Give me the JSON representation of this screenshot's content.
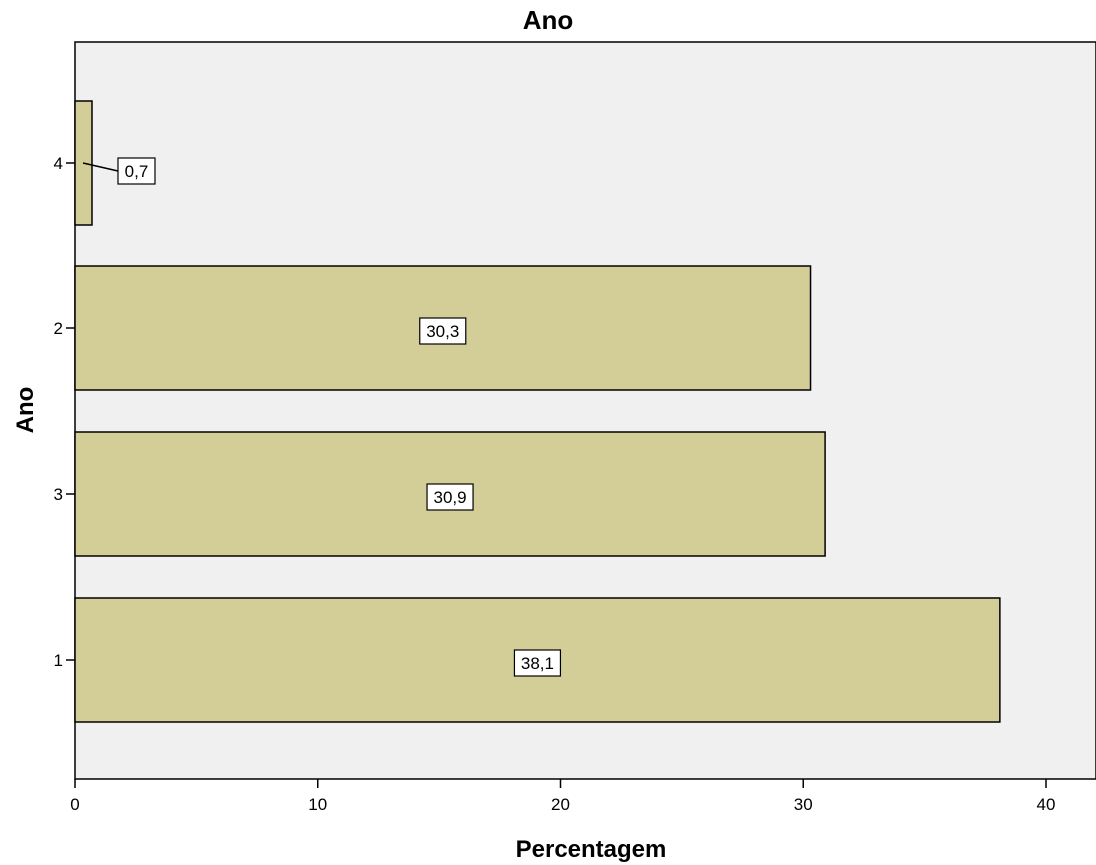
{
  "chart_data": {
    "type": "bar",
    "orientation": "horizontal",
    "title": "Ano",
    "xlabel": "Percentagem",
    "ylabel": "Ano",
    "categories": [
      "4",
      "2",
      "3",
      "1"
    ],
    "values": [
      0.7,
      30.3,
      30.9,
      38.1
    ],
    "data_labels": [
      "0,7",
      "30,3",
      "30,9",
      "38,1"
    ],
    "xlim": [
      0,
      42
    ],
    "xticks": [
      0,
      10,
      20,
      30,
      40
    ],
    "xtick_labels": [
      "0",
      "10",
      "20",
      "30",
      "40"
    ],
    "grid": false,
    "legend": "none",
    "colors": {
      "plot_background": "#f0f0f0",
      "bar_fill": "#d3ce97",
      "bar_stroke": "#000000",
      "label_box": "#ffffff"
    }
  }
}
